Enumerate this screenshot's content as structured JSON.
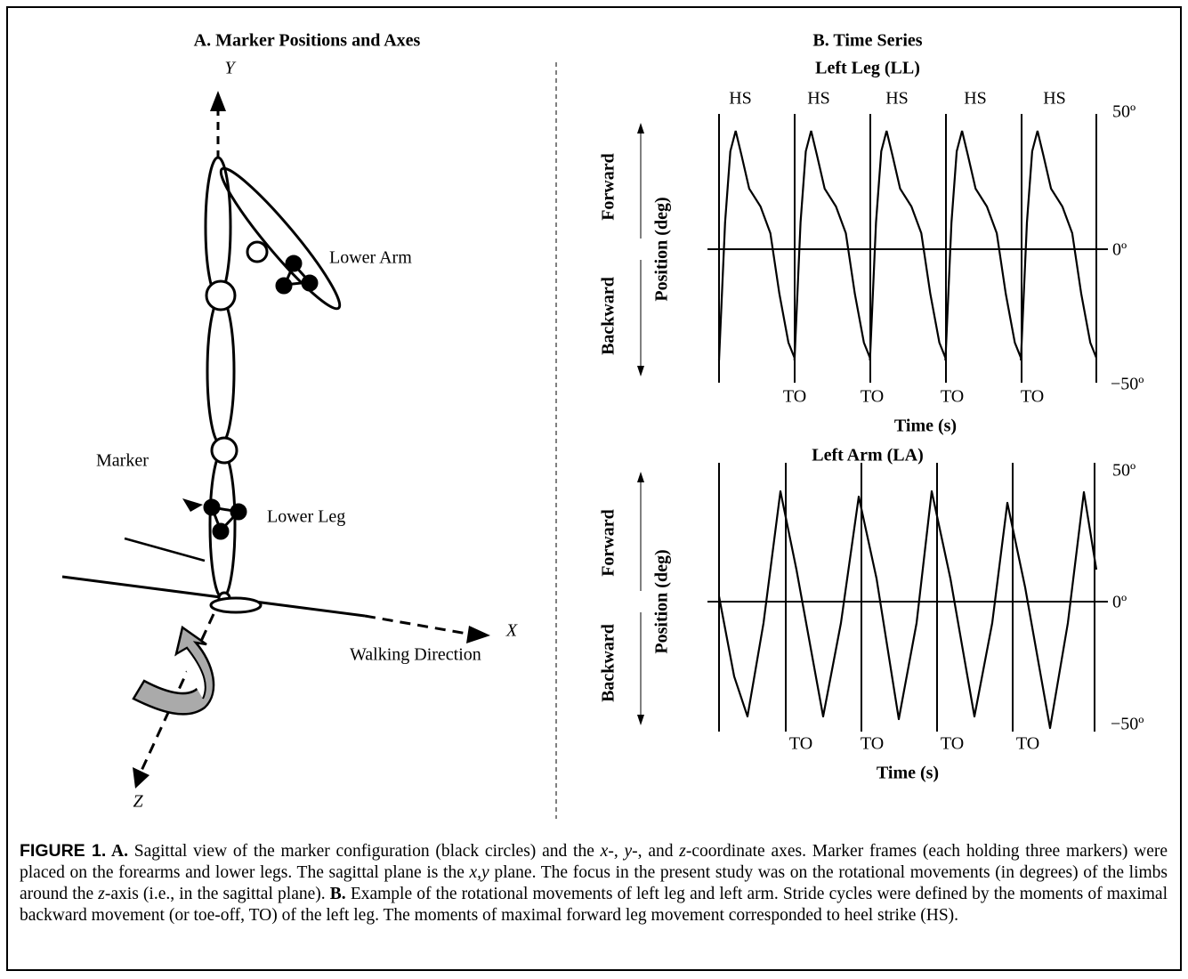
{
  "left_panel": {
    "title": "A. Marker Positions and Axes",
    "y_axis": "Y",
    "x_axis": "X",
    "z_axis": "Z",
    "lower_arm": "Lower Arm",
    "marker": "Marker",
    "lower_leg": "Lower Leg",
    "walking_direction": "Walking Direction"
  },
  "right_panel": {
    "title": "B. Time Series",
    "leg_chart": {
      "title": "Left Leg (LL)",
      "hs_labels": [
        "HS",
        "HS",
        "HS",
        "HS",
        "HS"
      ],
      "to_labels": [
        "TO",
        "TO",
        "TO",
        "TO"
      ],
      "top_label": "50º",
      "zero_label": "0º",
      "bottom_label": "−50º",
      "x_label": "Time (s)",
      "forward": "Forward",
      "backward": "Backward",
      "y_label": "Position (deg)"
    },
    "arm_chart": {
      "title": "Left Arm (LA)",
      "to_labels": [
        "TO",
        "TO",
        "TO",
        "TO"
      ],
      "top_label": "50º",
      "zero_label": "0º",
      "bottom_label": "−50º",
      "x_label": "Time (s)",
      "forward": "Forward",
      "backward": "Backward",
      "y_label": "Position (deg)"
    }
  },
  "caption": {
    "parts": [
      "FIGURE 1.",
      " A.",
      " Sagittal view of the marker configuration (black circles) and the ",
      "x",
      "-, ",
      "y",
      "-, and ",
      "z",
      "-coordinate axes. Marker frames (each holding three markers) were placed on the forearms and lower legs. The sagittal plane is the ",
      "x,y",
      " plane. The focus in the present study was on the rotational movements (in degrees) of the limbs around the ",
      "z",
      "-axis (i.e., in the sagittal plane). ",
      "B.",
      " Example of the rotational movements of left leg and left arm. Stride cycles were defined by the moments of maximal backward movement (or toe-off, TO) of the left leg. The moments of maximal forward leg movement corresponded to heel strike (HS)."
    ]
  }
}
